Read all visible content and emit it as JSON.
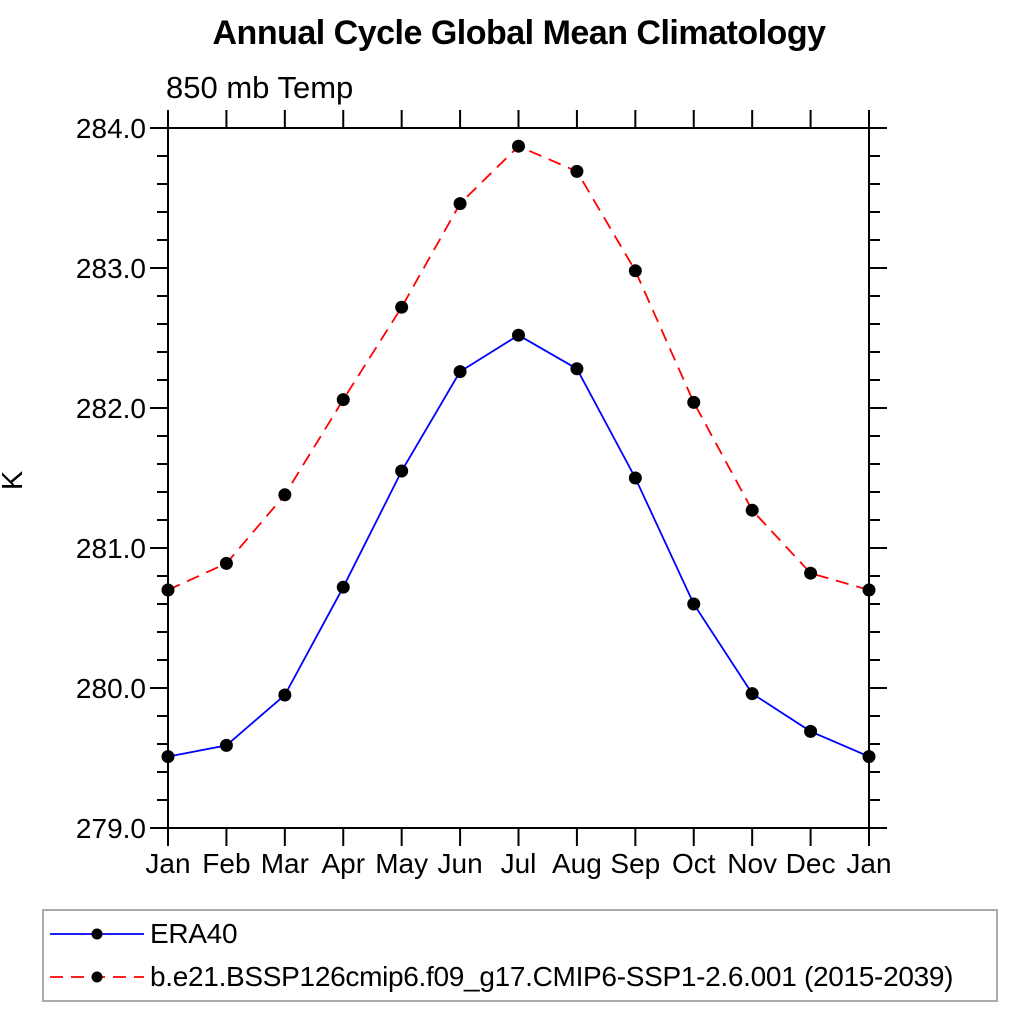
{
  "page_background": "#ffffff",
  "chart_data": {
    "type": "line",
    "title": "Annual Cycle Global Mean Climatology",
    "subtitle": "850 mb Temp",
    "ylabel": "K",
    "xlabel": "",
    "ylim": [
      279.0,
      284.0
    ],
    "ytick_major_step": 1.0,
    "ytick_minor_step": 0.2,
    "ytick_labels": [
      "279.0",
      "280.0",
      "281.0",
      "282.0",
      "283.0",
      "284.0"
    ],
    "grid": false,
    "tick_style": "outward",
    "axis_color": "#000000",
    "x": [
      "Jan",
      "Feb",
      "Mar",
      "Apr",
      "May",
      "Jun",
      "Jul",
      "Aug",
      "Sep",
      "Oct",
      "Nov",
      "Dec",
      "Jan"
    ],
    "series": [
      {
        "name": "ERA40",
        "color": "#0000ff",
        "line_style": "solid",
        "marker": "filled-circle",
        "marker_color": "#000000",
        "values": [
          279.51,
          279.59,
          279.95,
          280.72,
          281.55,
          282.26,
          282.52,
          282.28,
          281.5,
          280.6,
          279.96,
          279.69,
          279.51
        ]
      },
      {
        "name": "b.e21.BSSP126cmip6.f09_g17.CMIP6-SSP1-2.6.001 (2015-2039)",
        "color": "#ff0000",
        "line_style": "dashed",
        "marker": "filled-circle",
        "marker_color": "#000000",
        "values": [
          280.7,
          280.89,
          281.38,
          282.06,
          282.72,
          283.46,
          283.87,
          283.69,
          282.98,
          282.04,
          281.27,
          280.82,
          280.7
        ]
      }
    ],
    "legend_position": "bottom",
    "legend_border_color": "#ababab"
  }
}
